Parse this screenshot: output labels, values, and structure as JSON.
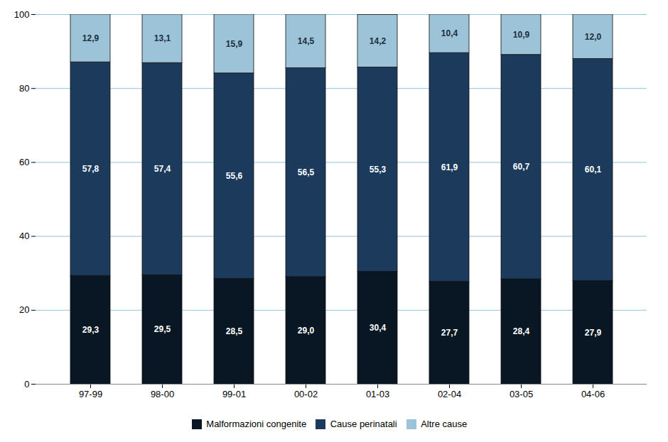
{
  "chart_data": {
    "type": "bar",
    "stacked": true,
    "categories": [
      "97-99",
      "98-00",
      "99-01",
      "00-02",
      "01-03",
      "02-04",
      "03-05",
      "04-06"
    ],
    "series": [
      {
        "name": "Malformazioni congenite",
        "color": "#091724",
        "values": [
          29.3,
          29.5,
          28.5,
          29.0,
          30.4,
          27.7,
          28.4,
          27.9
        ],
        "value_labels": [
          "29,3",
          "29,5",
          "28,5",
          "29,0",
          "30,4",
          "27,7",
          "28,4",
          "27,9"
        ]
      },
      {
        "name": "Cause perinatali",
        "color": "#1b3a5c",
        "values": [
          57.8,
          57.4,
          55.6,
          56.5,
          55.3,
          61.9,
          60.7,
          60.1
        ],
        "value_labels": [
          "57,8",
          "57,4",
          "55,6",
          "56,5",
          "55,3",
          "61,9",
          "60,7",
          "60,1"
        ]
      },
      {
        "name": "Altre cause",
        "color": "#9dc3d8",
        "values": [
          12.9,
          13.1,
          15.9,
          14.5,
          14.2,
          10.4,
          10.9,
          12.0
        ],
        "value_labels": [
          "12,9",
          "13,1",
          "15,9",
          "14,5",
          "14,2",
          "10,4",
          "10,9",
          "12,0"
        ]
      }
    ],
    "ylim": [
      0,
      100
    ],
    "yticks": [
      0,
      20,
      40,
      60,
      80,
      100
    ],
    "grid": true,
    "legend": "bottom",
    "data_labels": true
  }
}
